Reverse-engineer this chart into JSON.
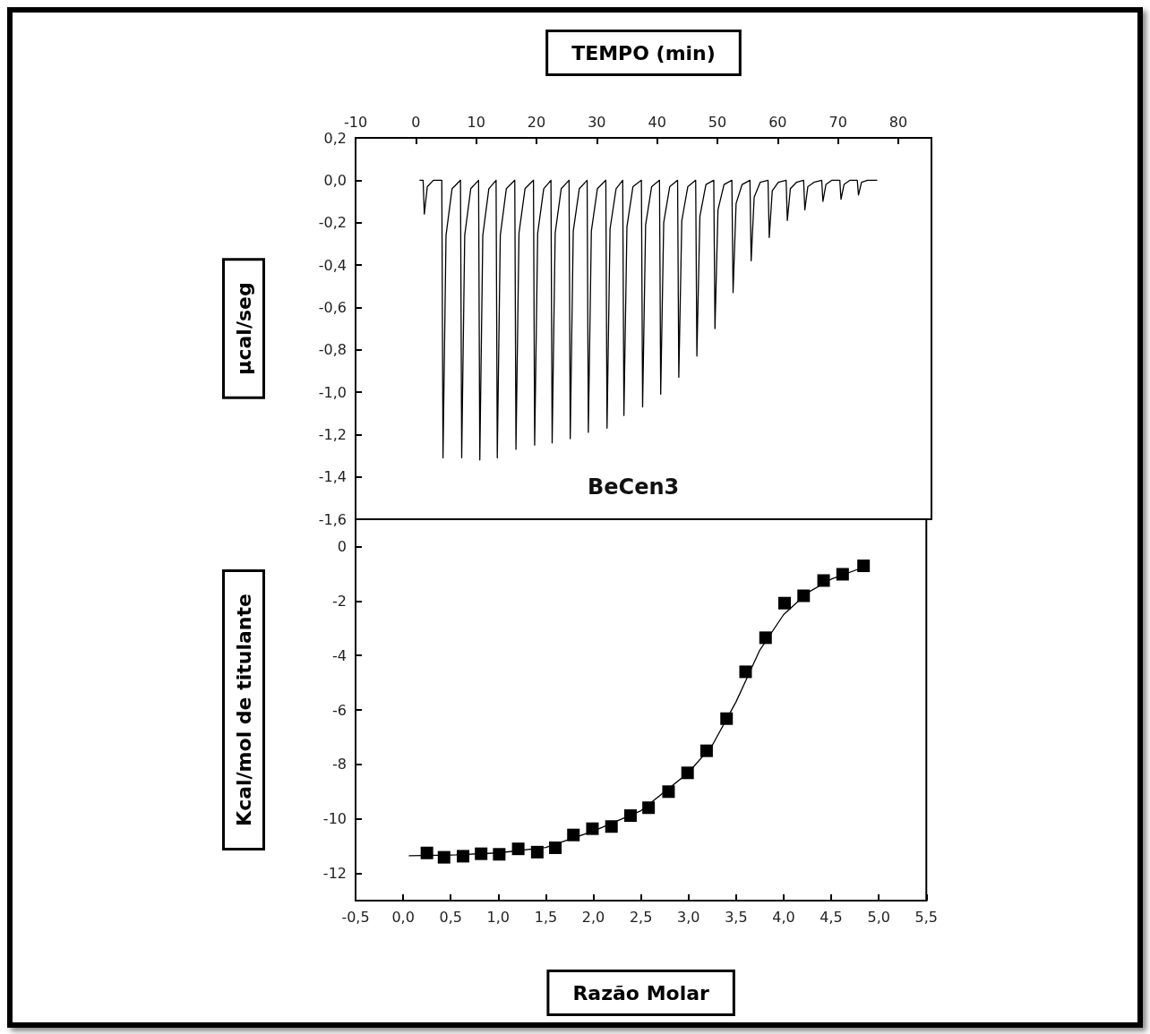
{
  "chart_data": [
    {
      "type": "line",
      "xlabel": "TEMPO (min)",
      "ylabel": "µcal/seg",
      "annotations": [
        "BeCen3"
      ],
      "marker": "none",
      "line_style": "solid",
      "grid": false,
      "xlim": [
        -10,
        85.5
      ],
      "xticks": [
        -10,
        0,
        10,
        20,
        30,
        40,
        50,
        60,
        70,
        80
      ],
      "ylim": [
        -1.6,
        0.2
      ],
      "yticks": [
        {
          "value": 0.2,
          "label": "0,2"
        },
        {
          "value": 0,
          "label": "0,0"
        },
        {
          "value": -0.2,
          "label": "-0,2"
        },
        {
          "value": -0.4,
          "label": "-0,4"
        },
        {
          "value": -0.6,
          "label": "-0,6"
        },
        {
          "value": -0.8,
          "label": "-0,8"
        },
        {
          "value": -1,
          "label": "-1,0"
        },
        {
          "value": -1.2,
          "label": "-1,2"
        },
        {
          "value": -1.4,
          "label": "-1,4"
        },
        {
          "value": -1.6,
          "label": "-1,6"
        }
      ],
      "series": [
        {
          "color": "#000000",
          "x": [
            0.6,
            1.2,
            1.4,
            1.9,
            2.9,
            4.3,
            4.5,
            5.0,
            6.0,
            7.4,
            7.6,
            8.1,
            9.1,
            10.4,
            10.6,
            11.1,
            12.1,
            13.3,
            13.5,
            14.0,
            15.0,
            16.4,
            16.6,
            17.1,
            18.1,
            19.5,
            19.7,
            20.2,
            21.2,
            22.4,
            22.6,
            23.1,
            24.1,
            25.4,
            25.6,
            26.1,
            27.1,
            28.4,
            28.6,
            29.1,
            30.1,
            31.5,
            31.7,
            32.2,
            33.2,
            34.3,
            34.5,
            35.0,
            36.0,
            37.4,
            37.6,
            38.1,
            39.1,
            40.4,
            40.6,
            41.1,
            42.1,
            43.4,
            43.6,
            44.1,
            45.1,
            46.4,
            46.6,
            47.1,
            48.1,
            49.4,
            49.6,
            50.1,
            51.1,
            52.4,
            52.6,
            53.1,
            54.1,
            55.4,
            55.6,
            56.1,
            57.1,
            58.4,
            58.6,
            59.1,
            60.1,
            61.4,
            61.6,
            62.1,
            63.1,
            64.3,
            64.5,
            65.0,
            66.0,
            67.3,
            67.5,
            68.0,
            69.0,
            70.3,
            70.5,
            71.0,
            72.0,
            73.2,
            73.4,
            73.9,
            74.9,
            76.5
          ],
          "values": [
            0,
            0,
            -0.16,
            -0.03,
            0,
            0,
            -1.31,
            -0.26,
            -0.04,
            0,
            -1.31,
            -0.26,
            -0.04,
            0,
            -1.32,
            -0.26,
            -0.04,
            0,
            -1.31,
            -0.26,
            -0.04,
            0,
            -1.27,
            -0.25,
            -0.04,
            0,
            -1.25,
            -0.25,
            -0.04,
            0,
            -1.24,
            -0.25,
            -0.04,
            0,
            -1.22,
            -0.24,
            -0.04,
            0,
            -1.19,
            -0.24,
            -0.04,
            0,
            -1.17,
            -0.23,
            -0.04,
            0,
            -1.11,
            -0.22,
            -0.03,
            0,
            -1.07,
            -0.21,
            -0.03,
            0,
            -1.01,
            -0.2,
            -0.03,
            0,
            -0.93,
            -0.19,
            -0.03,
            0,
            -0.83,
            -0.17,
            -0.02,
            0,
            -0.7,
            -0.14,
            -0.02,
            0,
            -0.53,
            -0.11,
            -0.02,
            0,
            -0.38,
            -0.08,
            -0.01,
            0,
            -0.27,
            -0.05,
            -0.01,
            0,
            -0.19,
            -0.04,
            -0.01,
            0,
            -0.14,
            -0.03,
            -0.01,
            0,
            -0.1,
            -0.02,
            0,
            0,
            -0.09,
            -0.02,
            0,
            0,
            -0.07,
            -0.01,
            0,
            0
          ]
        }
      ]
    },
    {
      "type": "scatter",
      "xlabel": "Razão Molar",
      "ylabel": "Kcal/mol de titulante",
      "marker": "square",
      "grid": false,
      "xlim": [
        -0.5,
        5.5
      ],
      "xticks": [
        {
          "value": -0.5,
          "label": "-0,5"
        },
        {
          "value": 0,
          "label": "0,0"
        },
        {
          "value": 0.5,
          "label": "0,5"
        },
        {
          "value": 1,
          "label": "1,0"
        },
        {
          "value": 1.5,
          "label": "1,5"
        },
        {
          "value": 2,
          "label": "2,0"
        },
        {
          "value": 2.5,
          "label": "2,5"
        },
        {
          "value": 3,
          "label": "3,0"
        },
        {
          "value": 3.5,
          "label": "3,5"
        },
        {
          "value": 4,
          "label": "4,0"
        },
        {
          "value": 4.5,
          "label": "4,5"
        },
        {
          "value": 5,
          "label": "5,0"
        },
        {
          "value": 5.5,
          "label": "5,5"
        }
      ],
      "ylim": [
        -13,
        1
      ],
      "yticks": [
        0,
        -2,
        -4,
        -6,
        -8,
        -10,
        -12
      ],
      "series": [
        {
          "color": "#000000",
          "x": [
            0.25,
            0.43,
            0.63,
            0.82,
            1.01,
            1.21,
            1.41,
            1.6,
            1.79,
            1.99,
            2.19,
            2.39,
            2.58,
            2.79,
            2.99,
            3.19,
            3.4,
            3.6,
            3.81,
            4.01,
            4.21,
            4.42,
            4.62,
            4.84
          ],
          "values": [
            -11.25,
            -11.41,
            -11.37,
            -11.28,
            -11.3,
            -11.1,
            -11.22,
            -11.06,
            -10.59,
            -10.36,
            -10.28,
            -9.88,
            -9.59,
            -9.0,
            -8.31,
            -7.5,
            -6.32,
            -4.6,
            -3.35,
            -2.08,
            -1.81,
            -1.25,
            -1.02,
            -0.71
          ]
        },
        {
          "type": "line",
          "marker": "none",
          "line_style": "solid",
          "color": "#000000",
          "x": [
            0.06,
            0.5,
            1.0,
            1.5,
            2.0,
            2.5,
            3.0,
            3.25,
            3.5,
            3.75,
            4.0,
            4.25,
            4.5,
            4.85
          ],
          "values": [
            -11.35,
            -11.33,
            -11.25,
            -11.05,
            -10.45,
            -9.7,
            -8.3,
            -7.3,
            -5.7,
            -3.8,
            -2.5,
            -1.7,
            -1.2,
            -0.75
          ]
        }
      ]
    }
  ]
}
